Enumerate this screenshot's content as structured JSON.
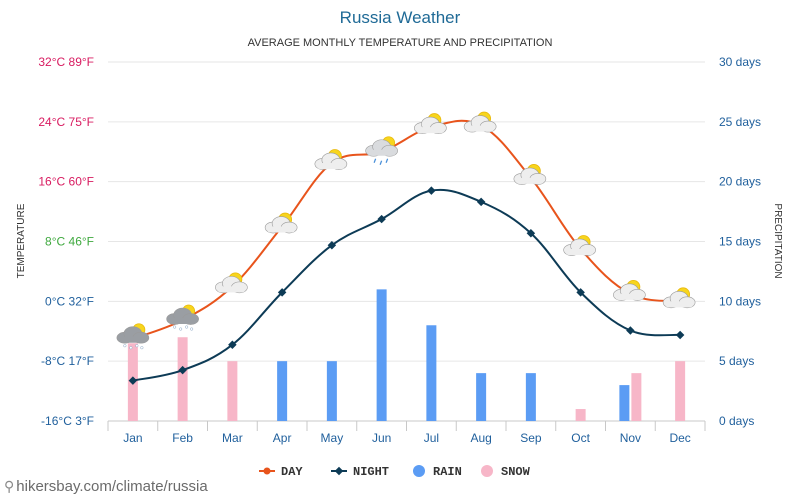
{
  "chart_data": {
    "type": "line",
    "title": "Russia Weather",
    "subtitle": "AVERAGE MONTHLY TEMPERATURE AND PRECIPITATION",
    "ylabel_left": "TEMPERATURE",
    "ylabel_right": "PRECIPITATION",
    "categories": [
      "Jan",
      "Feb",
      "Mar",
      "Apr",
      "May",
      "Jun",
      "Jul",
      "Aug",
      "Sep",
      "Oct",
      "Nov",
      "Dec"
    ],
    "left_ticks": [
      {
        "c": -16,
        "label": "-16°C 3°F",
        "color": "#1f5f9c"
      },
      {
        "c": -8,
        "label": "-8°C 17°F",
        "color": "#1f5f9c"
      },
      {
        "c": 0,
        "label": "0°C 32°F",
        "color": "#1f5f9c"
      },
      {
        "c": 8,
        "label": "8°C 46°F",
        "color": "#3fa93f"
      },
      {
        "c": 16,
        "label": "16°C 60°F",
        "color": "#d81b60"
      },
      {
        "c": 24,
        "label": "24°C 75°F",
        "color": "#d81b60"
      },
      {
        "c": 32,
        "label": "32°C 89°F",
        "color": "#d81b60"
      }
    ],
    "right_ticks": [
      {
        "d": 0,
        "label": "0 days"
      },
      {
        "d": 5,
        "label": "5 days"
      },
      {
        "d": 10,
        "label": "10 days"
      },
      {
        "d": 15,
        "label": "15 days"
      },
      {
        "d": 20,
        "label": "20 days"
      },
      {
        "d": 25,
        "label": "25 days"
      },
      {
        "d": 30,
        "label": "30 days"
      }
    ],
    "ylim_temp": [
      -16,
      32
    ],
    "ylim_days": [
      0,
      30
    ],
    "series": [
      {
        "name": "DAY",
        "kind": "line",
        "color": "#e8541c",
        "values": [
          -5,
          -2.5,
          2,
          10,
          18.5,
          20,
          23.3,
          23.5,
          16.5,
          7,
          1,
          0
        ]
      },
      {
        "name": "NIGHT",
        "kind": "line",
        "color": "#0d3b56",
        "values": [
          -10.6,
          -9.2,
          -5.8,
          1.2,
          7.5,
          11,
          14.8,
          13.3,
          9.1,
          1.2,
          -3.9,
          -4.5
        ]
      },
      {
        "name": "RAIN",
        "kind": "bar",
        "color": "#5b9cf4",
        "values": [
          0,
          0,
          0,
          5,
          5,
          11,
          8,
          4,
          4,
          0,
          3,
          0
        ]
      },
      {
        "name": "SNOW",
        "kind": "bar",
        "color": "#f7b6c8",
        "values": [
          6.5,
          7,
          5,
          0,
          0,
          0,
          0,
          0,
          0,
          1,
          4,
          5
        ]
      }
    ],
    "grid": true,
    "legend_position": "bottom"
  },
  "footer": {
    "text": "hikersbay.com/climate/russia"
  },
  "colors": {
    "title": "#1f6a96",
    "axis_text": "#1f5f9c",
    "grid": "#e6e6e6"
  },
  "icons": [
    "snow-cloud-icon",
    "snow-cloud-icon",
    "partly-sunny-icon",
    "partly-sunny-icon",
    "partly-sunny-icon",
    "rain-cloud-icon",
    "partly-sunny-icon",
    "partly-sunny-icon",
    "partly-sunny-icon",
    "partly-sunny-icon",
    "partly-sunny-icon",
    "partly-sunny-icon"
  ]
}
